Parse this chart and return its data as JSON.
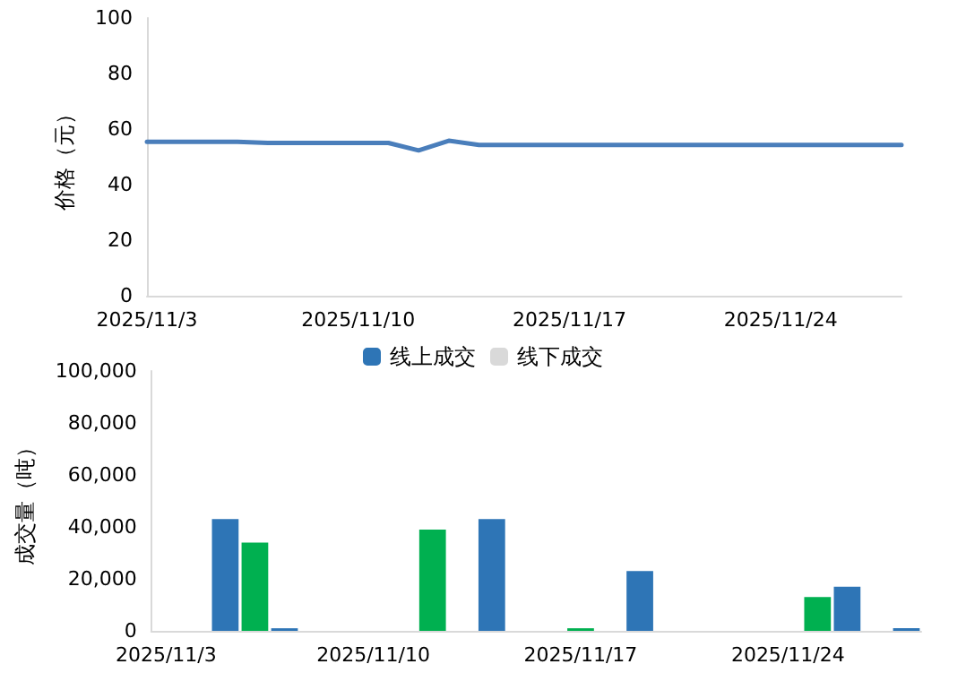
{
  "chart_data": [
    {
      "type": "line",
      "ylabel": "价格（元）",
      "categories": [
        "2025/11/3",
        null,
        null,
        null,
        null,
        null,
        null,
        "2025/11/10",
        null,
        null,
        null,
        null,
        null,
        null,
        "2025/11/17",
        null,
        null,
        null,
        null,
        null,
        null,
        "2025/11/24",
        null,
        null,
        null,
        null
      ],
      "series": [
        {
          "color": "#4a7ebb",
          "values": [
            55.4,
            55.4,
            55.4,
            55.4,
            55.0,
            55.0,
            55.0,
            55.0,
            55.0,
            52.3,
            55.8,
            54.3,
            54.3,
            54.3,
            54.3,
            54.3,
            54.3,
            54.3,
            54.3,
            54.3,
            54.3,
            54.3,
            54.3,
            54.3,
            54.3,
            54.3
          ]
        }
      ],
      "ylim": [
        0,
        100
      ],
      "yticks": [
        0,
        20,
        40,
        60,
        80,
        100
      ],
      "grid": false,
      "marker": "none",
      "line_style": "solid"
    },
    {
      "type": "bar",
      "ylabel": "成交量（吨）",
      "stacked": true,
      "legend": "top",
      "categories": [
        "2025/11/3",
        null,
        null,
        null,
        null,
        null,
        null,
        "2025/11/10",
        null,
        null,
        null,
        null,
        null,
        null,
        "2025/11/17",
        null,
        null,
        null,
        null,
        null,
        null,
        "2025/11/24",
        null,
        null,
        null,
        null
      ],
      "series": [
        {
          "name": "线上成交",
          "color": "#2e75b6",
          "values": [
            null,
            null,
            43000,
            null,
            1000,
            null,
            null,
            null,
            null,
            null,
            null,
            43000,
            null,
            null,
            null,
            null,
            23000,
            null,
            null,
            null,
            null,
            null,
            null,
            17000,
            null,
            1000
          ]
        },
        {
          "name": "线下成交",
          "color": "#d9d9d9",
          "values": [
            null,
            null,
            null,
            null,
            null,
            null,
            null,
            null,
            null,
            null,
            null,
            null,
            null,
            null,
            null,
            null,
            null,
            null,
            null,
            null,
            null,
            null,
            null,
            null,
            null,
            null
          ]
        },
        {
          "color": "#00b050",
          "values": [
            null,
            null,
            null,
            34000,
            null,
            null,
            null,
            null,
            null,
            39000,
            null,
            null,
            null,
            null,
            1000,
            null,
            null,
            null,
            null,
            null,
            null,
            null,
            13000,
            null,
            null,
            null
          ]
        }
      ],
      "ylim": [
        0,
        100000
      ],
      "yticks": [
        {
          "value": 0,
          "label": "0"
        },
        {
          "value": 20000,
          "label": "20,000"
        },
        {
          "value": 40000,
          "label": "40,000"
        },
        {
          "value": 60000,
          "label": "60,000"
        },
        {
          "value": 80000,
          "label": "80,000"
        },
        {
          "value": 100000,
          "label": "100,000"
        }
      ],
      "grid": false
    }
  ]
}
